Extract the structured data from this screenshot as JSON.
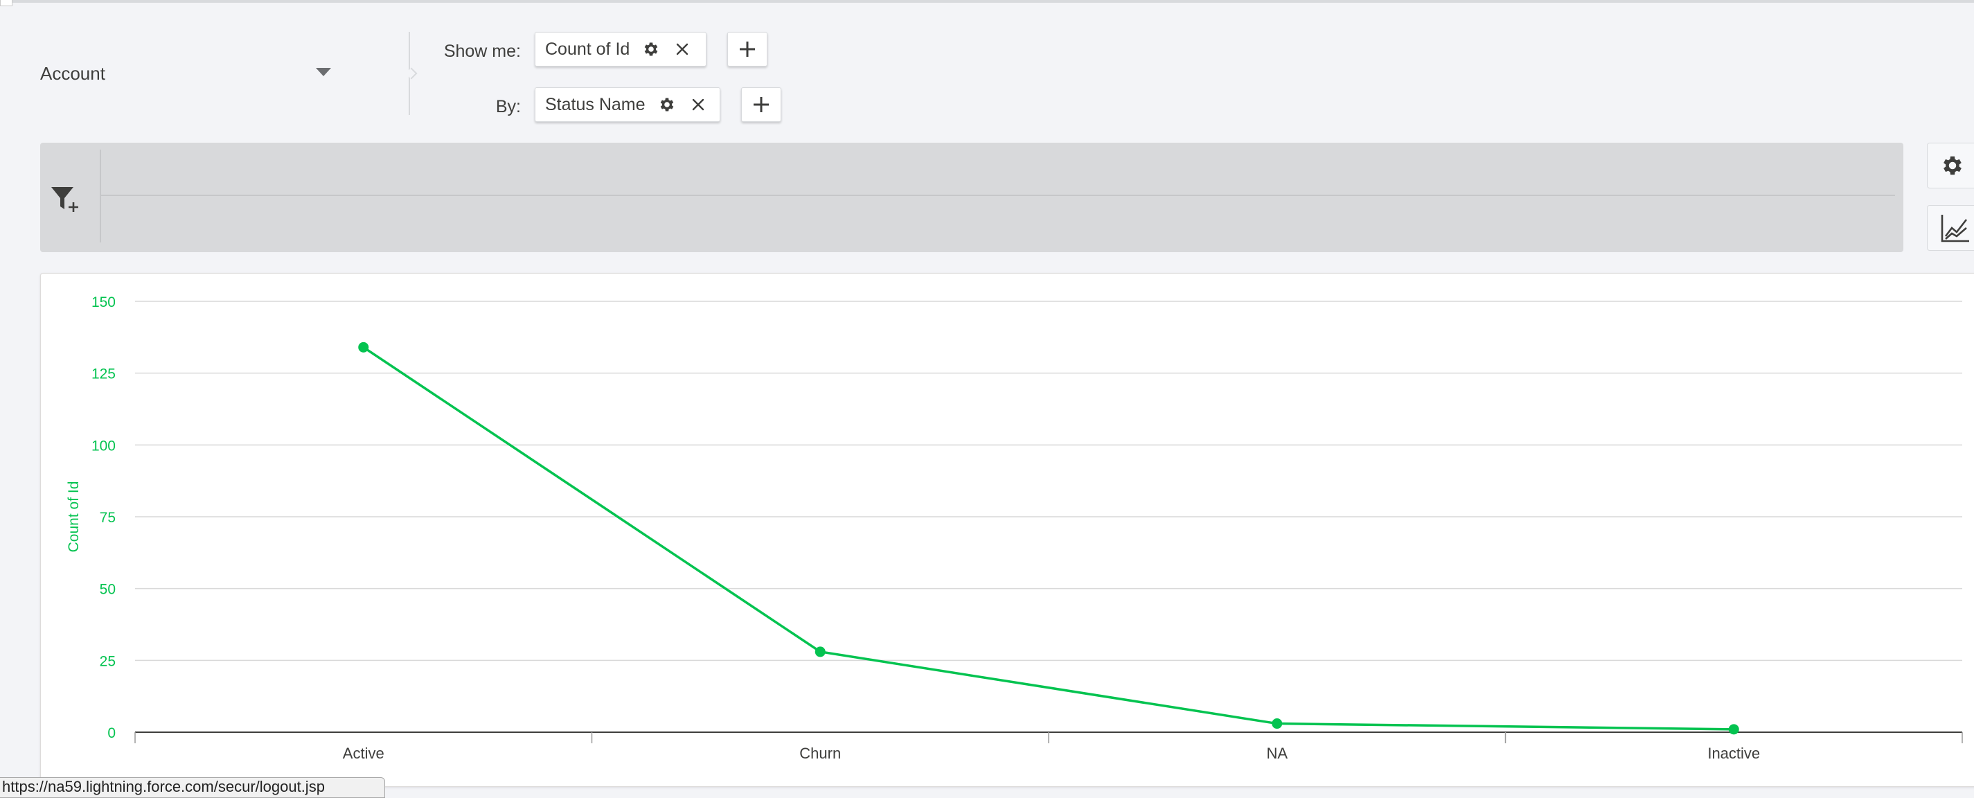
{
  "object_selector": {
    "label": "Account"
  },
  "measures": {
    "show_me_label": "Show me:",
    "chips": [
      {
        "label": "Count of Id"
      }
    ]
  },
  "groupings": {
    "by_label": "By:",
    "chips": [
      {
        "label": "Status Name"
      }
    ]
  },
  "icons": {
    "gear": "gear-icon",
    "close": "close-icon",
    "add": "plus-icon",
    "filter": "filter-add-icon",
    "chart_type": "line-chart-icon",
    "dropdown": "chevron-down-icon"
  },
  "colors": {
    "series": "#04c350",
    "axis_label": "#04c350",
    "background": "#f3f4f7",
    "filter_bar": "#d8d9db"
  },
  "chart_data": {
    "type": "line",
    "categories": [
      "Active",
      "Churn",
      "NA",
      "Inactive"
    ],
    "series": [
      {
        "values": [
          134,
          28,
          3,
          1
        ]
      }
    ],
    "ylabel": "Count of Id",
    "xlabel": "",
    "ylim": [
      0,
      150
    ],
    "yticks": [
      0,
      25,
      50,
      75,
      100,
      125,
      150
    ],
    "grid": true
  },
  "status_bar": {
    "url": "https://na59.lightning.force.com/secur/logout.jsp"
  }
}
